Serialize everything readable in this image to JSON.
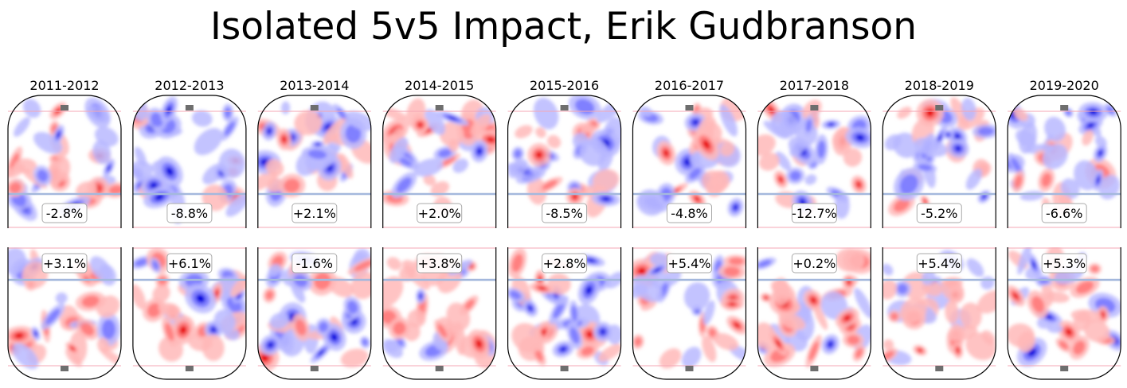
{
  "title": "Isolated 5v5 Impact, Erik Gudbranson",
  "colors": {
    "increase": "#ff0000",
    "decrease": "#0000ff",
    "boards": "#000000",
    "blue_line": "#a4b8dd",
    "goal_line": "#f4a7b4",
    "net": "#6e6e6e",
    "label_box_border": "#aaaaaa"
  },
  "chart_data": {
    "type": "heatmap",
    "title": "Isolated 5v5 Impact, Erik Gudbranson",
    "subplot_kind": "half-rink shot-rate difference map",
    "seasons": [
      "2011-2012",
      "2012-2013",
      "2013-2014",
      "2014-2015",
      "2015-2016",
      "2016-2017",
      "2017-2018",
      "2018-2019",
      "2019-2020"
    ],
    "defensive_impact_labels": [
      "-2.8%",
      "-8.8%",
      "+2.1%",
      "+2.0%",
      "-8.5%",
      "-4.8%",
      "-12.7%",
      "-5.2%",
      "-6.6%"
    ],
    "offensive_impact_labels": [
      "+3.1%",
      "+6.1%",
      "-1.6%",
      "+3.8%",
      "+2.8%",
      "+5.4%",
      "+0.2%",
      "+5.4%",
      "+5.3%"
    ],
    "defensive_impact_values": [
      -2.8,
      -8.8,
      2.1,
      2.0,
      -8.5,
      -4.8,
      -12.7,
      -5.2,
      -6.6
    ],
    "offensive_impact_values": [
      3.1,
      6.1,
      -1.6,
      3.8,
      2.8,
      5.4,
      0.2,
      5.4,
      5.3
    ],
    "color_scale": "diverging blue (fewer shots) to red (more shots)",
    "grid": false,
    "legend": "none"
  }
}
